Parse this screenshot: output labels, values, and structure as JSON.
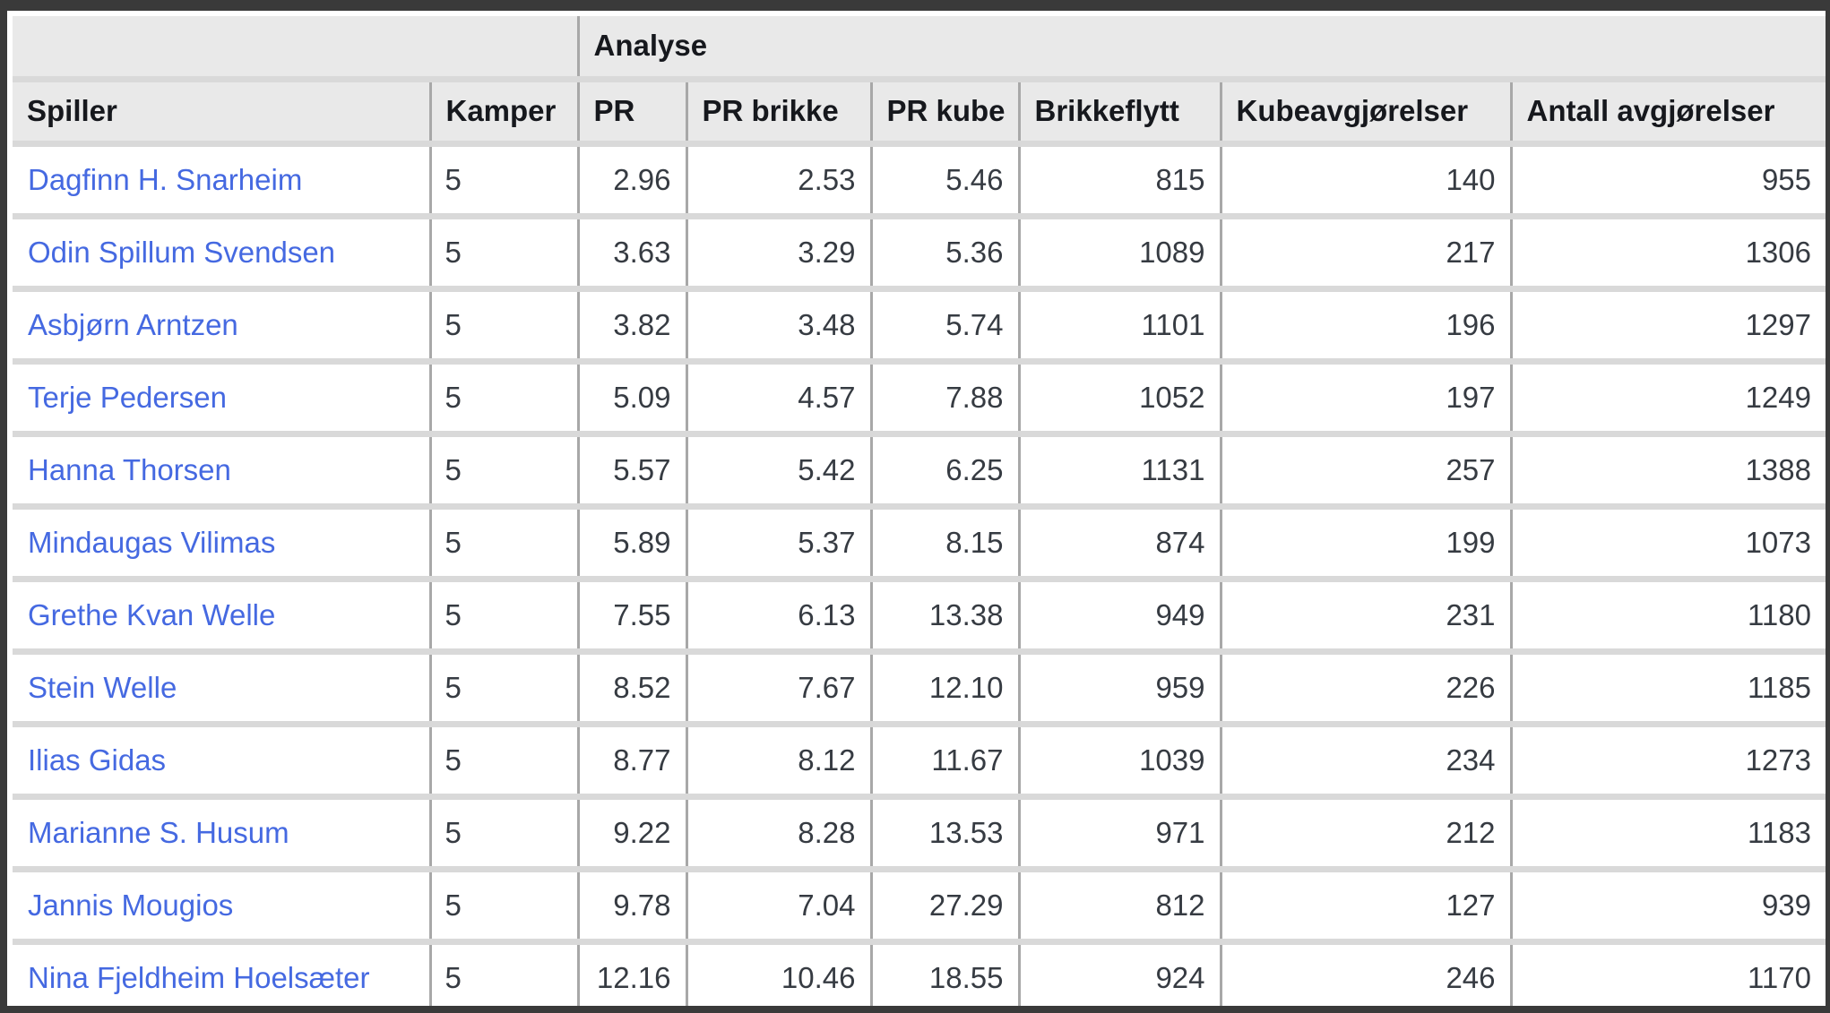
{
  "table": {
    "group_header": "Analyse",
    "columns": [
      "Spiller",
      "Kamper",
      "PR",
      "PR brikke",
      "PR kube",
      "Brikkeflytt",
      "Kubeavgjørelser",
      "Antall avgjørelser"
    ],
    "rows": [
      {
        "player": "Dagfinn H. Snarheim",
        "cells": [
          "5",
          "2.96",
          "2.53",
          "5.46",
          "815",
          "140",
          "955"
        ]
      },
      {
        "player": "Odin Spillum Svendsen",
        "cells": [
          "5",
          "3.63",
          "3.29",
          "5.36",
          "1089",
          "217",
          "1306"
        ]
      },
      {
        "player": "Asbjørn Arntzen",
        "cells": [
          "5",
          "3.82",
          "3.48",
          "5.74",
          "1101",
          "196",
          "1297"
        ]
      },
      {
        "player": "Terje Pedersen",
        "cells": [
          "5",
          "5.09",
          "4.57",
          "7.88",
          "1052",
          "197",
          "1249"
        ]
      },
      {
        "player": "Hanna Thorsen",
        "cells": [
          "5",
          "5.57",
          "5.42",
          "6.25",
          "1131",
          "257",
          "1388"
        ]
      },
      {
        "player": "Mindaugas Vilimas",
        "cells": [
          "5",
          "5.89",
          "5.37",
          "8.15",
          "874",
          "199",
          "1073"
        ]
      },
      {
        "player": "Grethe Kvan Welle",
        "cells": [
          "5",
          "7.55",
          "6.13",
          "13.38",
          "949",
          "231",
          "1180"
        ]
      },
      {
        "player": "Stein Welle",
        "cells": [
          "5",
          "8.52",
          "7.67",
          "12.10",
          "959",
          "226",
          "1185"
        ]
      },
      {
        "player": "Ilias Gidas",
        "cells": [
          "5",
          "8.77",
          "8.12",
          "11.67",
          "1039",
          "234",
          "1273"
        ]
      },
      {
        "player": "Marianne S. Husum",
        "cells": [
          "5",
          "9.22",
          "8.28",
          "13.53",
          "971",
          "212",
          "1183"
        ]
      },
      {
        "player": "Jannis Mougios",
        "cells": [
          "5",
          "9.78",
          "7.04",
          "27.29",
          "812",
          "127",
          "939"
        ]
      },
      {
        "player": "Nina Fjeldheim Hoelsæter",
        "cells": [
          "5",
          "12.16",
          "10.46",
          "18.55",
          "924",
          "246",
          "1170"
        ]
      }
    ],
    "colors": {
      "link_blue": "#4569e1",
      "header_bg": "#e9e9e9",
      "row_separator": "#d9d9d9",
      "column_divider": "#a8a8a8",
      "frame_dark": "#3a3a3a"
    }
  }
}
